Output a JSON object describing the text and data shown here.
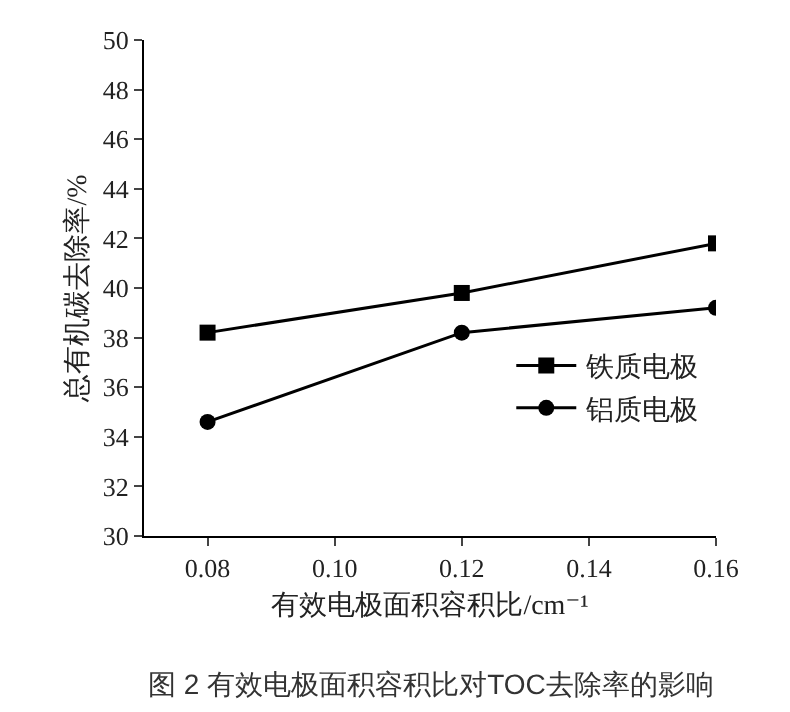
{
  "chart_data": {
    "type": "line",
    "xlabel": "有效电极面积容积比/cm⁻¹",
    "ylabel": "总有机碳去除率/%",
    "annotations": [
      "图 2 有效电极面积容积比对TOC去除率的影响"
    ],
    "x": [
      0.08,
      0.12,
      0.16
    ],
    "series": [
      {
        "name": "铁质电极",
        "color": "#000000",
        "marker": "square",
        "values": [
          38.2,
          39.8,
          41.8
        ]
      },
      {
        "name": "铝质电极",
        "color": "#000000",
        "marker": "circle",
        "values": [
          34.6,
          38.2,
          39.2
        ]
      }
    ],
    "xlim": [
      0.07,
      0.16
    ],
    "xticks": [
      0.08,
      {
        "value": 0.1,
        "label": "0.10"
      },
      0.12,
      0.14,
      0.16
    ],
    "ylim": [
      30,
      50
    ],
    "yticks": [
      30,
      32,
      34,
      36,
      38,
      40,
      42,
      44,
      46,
      48,
      50
    ],
    "grid": false,
    "legend": "right",
    "line_style": "solid"
  }
}
